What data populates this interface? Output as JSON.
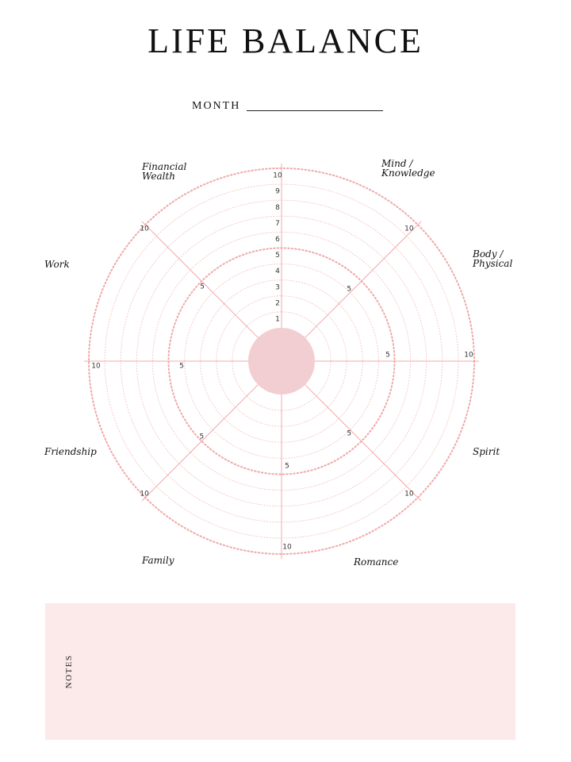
{
  "title": "LIFE BALANCE",
  "month_label": "MONTH",
  "wheel": {
    "scale_max": 10,
    "mid_mark": 5,
    "scale_labels": [
      "1",
      "2",
      "3",
      "4",
      "5",
      "6",
      "7",
      "8",
      "9",
      "10"
    ],
    "categories": [
      {
        "label": "Mind /\nKnowledge"
      },
      {
        "label": "Body /\nPhysical"
      },
      {
        "label": "Spirit"
      },
      {
        "label": "Romance"
      },
      {
        "label": "Family"
      },
      {
        "label": "Friendship"
      },
      {
        "label": "Work"
      },
      {
        "label": "Financial\nWealth"
      }
    ],
    "colors": {
      "accent": "#f0a8a8",
      "center": "#f2cdd2",
      "grid": "#f4c6c6",
      "number_text": "#333333"
    }
  },
  "notes_label": "NOTES"
}
